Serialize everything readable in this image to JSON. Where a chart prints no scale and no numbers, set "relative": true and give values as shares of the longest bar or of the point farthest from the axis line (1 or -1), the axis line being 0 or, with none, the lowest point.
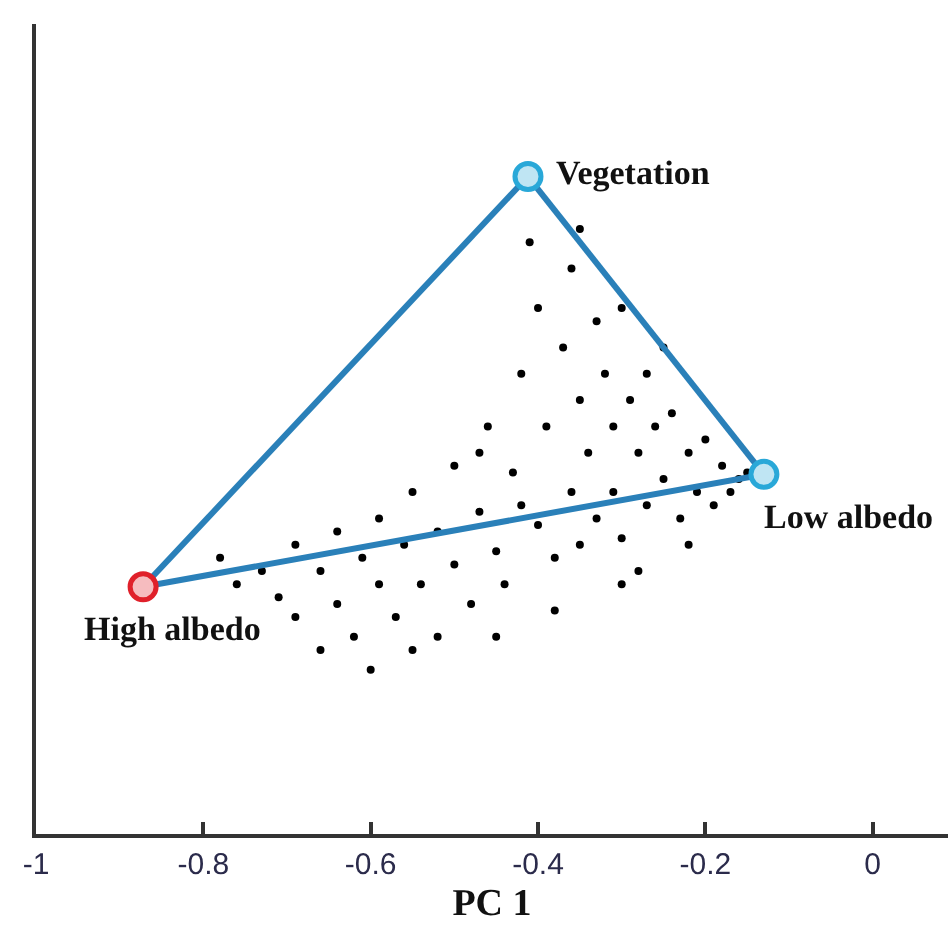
{
  "chart_data": {
    "type": "scatter",
    "xlabel": "PC 1",
    "relative": true,
    "xlim": [
      -1,
      0.09
    ],
    "xticks": [
      -1,
      -0.8,
      -0.6,
      -0.4,
      -0.2,
      0
    ],
    "grid": false,
    "annotations": [
      {
        "text": "Vegetation",
        "x": -0.412,
        "y": 1
      },
      {
        "text": "Low albedo",
        "x": -0.13,
        "y": 0.547
      },
      {
        "text": "High albedo",
        "x": -0.872,
        "y": 0.376
      }
    ],
    "series": [
      {
        "color": "#000000",
        "marker": "circle",
        "x": [
          -0.78,
          -0.76,
          -0.73,
          -0.71,
          -0.69,
          -0.69,
          -0.66,
          -0.64,
          -0.64,
          -0.62,
          -0.61,
          -0.59,
          -0.59,
          -0.57,
          -0.56,
          -0.55,
          -0.54,
          -0.52,
          -0.52,
          -0.5,
          -0.5,
          -0.48,
          -0.47,
          -0.46,
          -0.45,
          -0.44,
          -0.43,
          -0.42,
          -0.41,
          -0.4,
          -0.4,
          -0.39,
          -0.38,
          -0.37,
          -0.36,
          -0.35,
          -0.35,
          -0.34,
          -0.33,
          -0.33,
          -0.32,
          -0.31,
          -0.31,
          -0.3,
          -0.29,
          -0.28,
          -0.27,
          -0.27,
          -0.26,
          -0.25,
          -0.24,
          -0.23,
          -0.22,
          -0.21,
          -0.2,
          -0.19,
          -0.18,
          -0.17,
          -0.16,
          -0.15,
          -0.38,
          -0.3,
          -0.45,
          -0.55,
          -0.35,
          -0.28,
          -0.22,
          -0.42,
          -0.47,
          -0.6,
          -0.66,
          -0.36,
          -0.3,
          -0.25
        ],
        "values": [
          0.42,
          0.38,
          0.4,
          0.36,
          0.44,
          0.33,
          0.4,
          0.46,
          0.35,
          0.3,
          0.42,
          0.38,
          0.48,
          0.33,
          0.44,
          0.52,
          0.38,
          0.46,
          0.3,
          0.41,
          0.56,
          0.35,
          0.49,
          0.62,
          0.43,
          0.38,
          0.55,
          0.7,
          0.9,
          0.8,
          0.47,
          0.62,
          0.42,
          0.74,
          0.52,
          0.66,
          0.44,
          0.58,
          0.78,
          0.48,
          0.7,
          0.62,
          0.52,
          0.45,
          0.66,
          0.58,
          0.5,
          0.7,
          0.62,
          0.54,
          0.64,
          0.48,
          0.58,
          0.52,
          0.6,
          0.5,
          0.56,
          0.52,
          0.54,
          0.55,
          0.34,
          0.38,
          0.3,
          0.28,
          0.92,
          0.4,
          0.44,
          0.5,
          0.58,
          0.25,
          0.28,
          0.86,
          0.8,
          0.74
        ]
      },
      {
        "type": "line",
        "color": "#2a80b9",
        "marker": "none",
        "line_style": "solid",
        "x": [
          -0.872,
          -0.412
        ],
        "values": [
          0.376,
          1
        ]
      },
      {
        "type": "line",
        "color": "#2a80b9",
        "marker": "none",
        "line_style": "solid",
        "x": [
          -0.412,
          -0.13
        ],
        "values": [
          1,
          0.547
        ]
      },
      {
        "type": "line",
        "color": "#2a80b9",
        "marker": "none",
        "line_style": "solid",
        "x": [
          -0.872,
          -0.13
        ],
        "values": [
          0.376,
          0.547
        ]
      },
      {
        "marker": "circle",
        "colors": [
          "#e0202a",
          "#29a8d8",
          "#29a8d8"
        ],
        "x": [
          -0.872,
          -0.412,
          -0.13
        ],
        "values": [
          0.376,
          1,
          0.547
        ]
      }
    ]
  }
}
